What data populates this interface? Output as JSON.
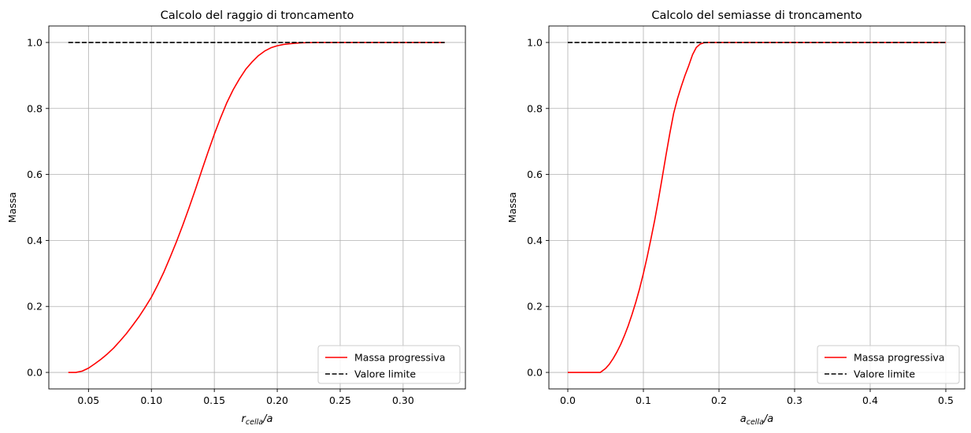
{
  "chart_data": [
    {
      "type": "line",
      "title": "Calcolo del raggio di troncamento",
      "xlabel_main": "r",
      "xlabel_sub": "cella",
      "xlabel_tail": "/a",
      "ylabel": "Massa",
      "xlim": [
        0.0185,
        0.3495
      ],
      "ylim": [
        -0.05,
        1.05
      ],
      "xticks": [
        0.05,
        0.1,
        0.15,
        0.2,
        0.25,
        0.3
      ],
      "xtick_labels": [
        "0.05",
        "0.10",
        "0.15",
        "0.20",
        "0.25",
        "0.30"
      ],
      "yticks": [
        0.0,
        0.2,
        0.4,
        0.6,
        0.8,
        1.0
      ],
      "ytick_labels": [
        "0.0",
        "0.2",
        "0.4",
        "0.6",
        "0.8",
        "1.0"
      ],
      "grid": true,
      "legend_position": "lower-right",
      "series": [
        {
          "name": "Massa progressiva",
          "color": "#ff0000",
          "style": "solid",
          "x": [
            0.034,
            0.04,
            0.045,
            0.05,
            0.055,
            0.06,
            0.065,
            0.07,
            0.075,
            0.08,
            0.085,
            0.09,
            0.095,
            0.1,
            0.105,
            0.11,
            0.115,
            0.12,
            0.125,
            0.13,
            0.135,
            0.14,
            0.145,
            0.15,
            0.155,
            0.16,
            0.165,
            0.17,
            0.175,
            0.18,
            0.185,
            0.19,
            0.195,
            0.2,
            0.205,
            0.21,
            0.215,
            0.22,
            0.23,
            0.24,
            0.25,
            0.27,
            0.29,
            0.31,
            0.333
          ],
          "y": [
            0.0,
            0.0,
            0.004,
            0.013,
            0.026,
            0.04,
            0.056,
            0.074,
            0.095,
            0.117,
            0.142,
            0.168,
            0.197,
            0.228,
            0.265,
            0.305,
            0.35,
            0.397,
            0.447,
            0.5,
            0.555,
            0.612,
            0.668,
            0.722,
            0.772,
            0.818,
            0.857,
            0.89,
            0.919,
            0.941,
            0.96,
            0.974,
            0.984,
            0.99,
            0.994,
            0.996,
            0.998,
            0.999,
            1.0,
            1.0,
            1.0,
            1.0,
            1.0,
            1.0,
            1.0
          ]
        },
        {
          "name": "Valore limite",
          "color": "#000000",
          "style": "dashed",
          "x": [
            0.034,
            0.333
          ],
          "y": [
            1.0,
            1.0
          ]
        }
      ]
    },
    {
      "type": "line",
      "title": "Calcolo del semiasse di troncamento",
      "xlabel_main": "a",
      "xlabel_sub": "cella",
      "xlabel_tail": "/a",
      "ylabel": "Massa",
      "xlim": [
        -0.025,
        0.525
      ],
      "ylim": [
        -0.05,
        1.05
      ],
      "xticks": [
        0.0,
        0.1,
        0.2,
        0.3,
        0.4,
        0.5
      ],
      "xtick_labels": [
        "0.0",
        "0.1",
        "0.2",
        "0.3",
        "0.4",
        "0.5"
      ],
      "yticks": [
        0.0,
        0.2,
        0.4,
        0.6,
        0.8,
        1.0
      ],
      "ytick_labels": [
        "0.0",
        "0.2",
        "0.4",
        "0.6",
        "0.8",
        "1.0"
      ],
      "grid": true,
      "legend_position": "lower-right",
      "series": [
        {
          "name": "Massa progressiva",
          "color": "#ff0000",
          "style": "solid",
          "x": [
            0.0,
            0.02,
            0.04,
            0.043,
            0.05,
            0.055,
            0.06,
            0.065,
            0.07,
            0.075,
            0.08,
            0.085,
            0.09,
            0.095,
            0.1,
            0.105,
            0.11,
            0.115,
            0.12,
            0.125,
            0.13,
            0.135,
            0.14,
            0.145,
            0.15,
            0.155,
            0.16,
            0.165,
            0.17,
            0.175,
            0.18,
            0.185,
            0.19,
            0.195,
            0.2,
            0.25,
            0.3,
            0.35,
            0.4,
            0.45,
            0.5
          ],
          "y": [
            0.0,
            0.0,
            0.0,
            0.0,
            0.012,
            0.025,
            0.042,
            0.062,
            0.085,
            0.112,
            0.142,
            0.176,
            0.213,
            0.254,
            0.3,
            0.35,
            0.405,
            0.462,
            0.525,
            0.592,
            0.66,
            0.725,
            0.785,
            0.829,
            0.866,
            0.9,
            0.93,
            0.963,
            0.985,
            0.995,
            0.999,
            1.0,
            1.0,
            1.0,
            1.0,
            1.0,
            1.0,
            1.0,
            1.0,
            1.0,
            1.0
          ]
        },
        {
          "name": "Valore limite",
          "color": "#000000",
          "style": "dashed",
          "x": [
            0.0,
            0.5
          ],
          "y": [
            1.0,
            1.0
          ]
        }
      ]
    }
  ]
}
